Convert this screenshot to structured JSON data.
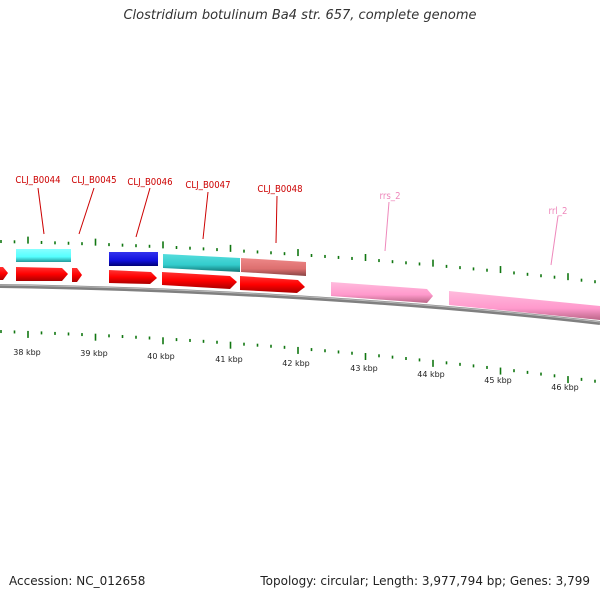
{
  "title": "Clostridium botulinum Ba4 str. 657, complete genome",
  "footer": {
    "accession": "Accession: NC_012658",
    "topology": "Topology: circular; Length: 3,977,794 bp; Genes: 3,799"
  },
  "colors": {
    "red": "#ff0000",
    "cyan": "#33cccc",
    "light_cyan": "#66ffff",
    "blue": "#1111dd",
    "salmon": "#e07070",
    "pink": "#ff99cc",
    "backbone": "#888888",
    "tick": "#117711",
    "label_red": "#cc0000",
    "label_pink": "#ee88bb"
  },
  "axis": {
    "unit": "kbp",
    "ticks": [
      {
        "label": "38 kbp"
      },
      {
        "label": "39 kbp"
      },
      {
        "label": "40 kbp"
      },
      {
        "label": "41 kbp"
      },
      {
        "label": "42 kbp"
      },
      {
        "label": "43 kbp"
      },
      {
        "label": "44 kbp"
      },
      {
        "label": "45 kbp"
      },
      {
        "label": "46 kbp"
      }
    ]
  },
  "gene_labels": [
    {
      "name": "CLJ_B0044",
      "color": "label_red"
    },
    {
      "name": "CLJ_B0045",
      "color": "label_red"
    },
    {
      "name": "CLJ_B0046",
      "color": "label_red"
    },
    {
      "name": "CLJ_B0047",
      "color": "label_red"
    },
    {
      "name": "CLJ_B0048",
      "color": "label_red"
    },
    {
      "name": "rrs_2",
      "color": "label_pink"
    },
    {
      "name": "rrl_2",
      "color": "label_pink"
    }
  ]
}
